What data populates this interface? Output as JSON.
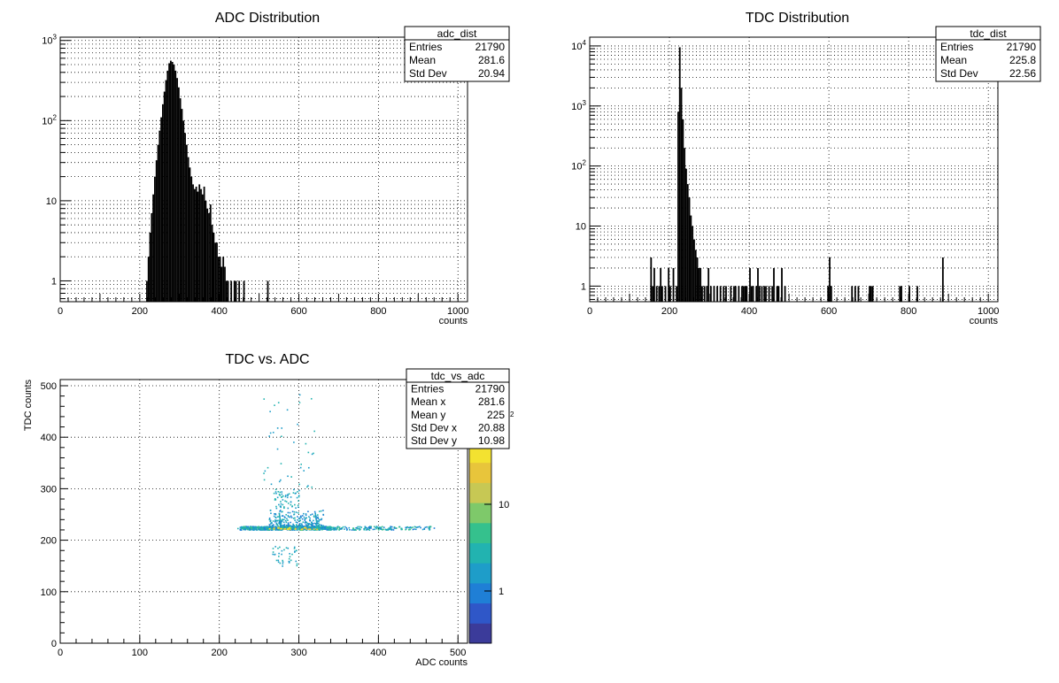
{
  "chart_data": [
    {
      "type": "bar",
      "id": "adc",
      "title": "ADC Distribution",
      "xlabel": "counts",
      "ylabel": "",
      "xlim": [
        0,
        1024
      ],
      "ylim": [
        0.55,
        1100
      ],
      "xticks": [
        "0",
        "200",
        "400",
        "600",
        "800",
        "1000"
      ],
      "yticks": [
        "1",
        "10",
        "10^2",
        "10^3"
      ],
      "y_log": true,
      "grid": true,
      "stats": {
        "name": "adc_dist",
        "rows": [
          [
            "Entries",
            "21790"
          ],
          [
            "Mean",
            "281.6"
          ],
          [
            "Std Dev",
            "20.94"
          ]
        ]
      },
      "bins": [
        [
          216,
          1
        ],
        [
          220,
          2
        ],
        [
          224,
          4
        ],
        [
          228,
          7
        ],
        [
          232,
          12
        ],
        [
          236,
          20
        ],
        [
          240,
          32
        ],
        [
          244,
          50
        ],
        [
          248,
          75
        ],
        [
          252,
          110
        ],
        [
          256,
          160
        ],
        [
          260,
          230
        ],
        [
          264,
          320
        ],
        [
          268,
          420
        ],
        [
          272,
          520
        ],
        [
          276,
          560
        ],
        [
          280,
          540
        ],
        [
          284,
          500
        ],
        [
          288,
          420
        ],
        [
          292,
          340
        ],
        [
          296,
          260
        ],
        [
          300,
          190
        ],
        [
          304,
          140
        ],
        [
          308,
          100
        ],
        [
          312,
          70
        ],
        [
          316,
          50
        ],
        [
          320,
          35
        ],
        [
          324,
          26
        ],
        [
          328,
          20
        ],
        [
          332,
          16
        ],
        [
          336,
          14
        ],
        [
          340,
          15
        ],
        [
          344,
          13
        ],
        [
          348,
          16
        ],
        [
          352,
          14
        ],
        [
          356,
          12
        ],
        [
          360,
          15
        ],
        [
          364,
          10
        ],
        [
          368,
          8
        ],
        [
          372,
          7
        ],
        [
          376,
          9
        ],
        [
          380,
          5
        ],
        [
          384,
          4
        ],
        [
          388,
          3
        ],
        [
          392,
          3
        ],
        [
          396,
          2
        ],
        [
          400,
          2
        ],
        [
          404,
          1.5
        ],
        [
          408,
          2
        ],
        [
          412,
          1.5
        ],
        [
          416,
          1
        ],
        [
          420,
          1
        ],
        [
          428,
          1
        ],
        [
          436,
          1
        ],
        [
          440,
          1
        ],
        [
          448,
          1
        ],
        [
          460,
          1
        ],
        [
          520,
          1
        ]
      ]
    },
    {
      "type": "bar",
      "id": "tdc",
      "title": "TDC Distribution",
      "xlabel": "counts",
      "ylabel": "",
      "xlim": [
        0,
        1024
      ],
      "ylim": [
        0.55,
        14000
      ],
      "xticks": [
        "0",
        "200",
        "400",
        "600",
        "800",
        "1000"
      ],
      "yticks": [
        "1",
        "10",
        "10^2",
        "10^3",
        "10^4"
      ],
      "y_log": true,
      "grid": true,
      "stats": {
        "name": "tdc_dist",
        "rows": [
          [
            "Entries",
            "21790"
          ],
          [
            "Mean",
            "225.8"
          ],
          [
            "Std Dev",
            "22.56"
          ]
        ]
      },
      "bins": [
        [
          152,
          3
        ],
        [
          156,
          1
        ],
        [
          160,
          2
        ],
        [
          166,
          1
        ],
        [
          172,
          1
        ],
        [
          176,
          2
        ],
        [
          180,
          1
        ],
        [
          188,
          1
        ],
        [
          196,
          2
        ],
        [
          200,
          1
        ],
        [
          208,
          2
        ],
        [
          216,
          1
        ],
        [
          220,
          800
        ],
        [
          224,
          9500
        ],
        [
          228,
          2000
        ],
        [
          232,
          600
        ],
        [
          236,
          200
        ],
        [
          240,
          90
        ],
        [
          244,
          50
        ],
        [
          248,
          30
        ],
        [
          252,
          15
        ],
        [
          256,
          10
        ],
        [
          260,
          6
        ],
        [
          264,
          4
        ],
        [
          268,
          3
        ],
        [
          272,
          2
        ],
        [
          276,
          2
        ],
        [
          280,
          1
        ],
        [
          286,
          1
        ],
        [
          292,
          1
        ],
        [
          296,
          2
        ],
        [
          302,
          1
        ],
        [
          310,
          1
        ],
        [
          318,
          1
        ],
        [
          326,
          1
        ],
        [
          334,
          1
        ],
        [
          340,
          1
        ],
        [
          352,
          1
        ],
        [
          360,
          1
        ],
        [
          364,
          1
        ],
        [
          372,
          1
        ],
        [
          380,
          1
        ],
        [
          384,
          1
        ],
        [
          388,
          1
        ],
        [
          392,
          1
        ],
        [
          400,
          2
        ],
        [
          404,
          1
        ],
        [
          408,
          1
        ],
        [
          416,
          1
        ],
        [
          420,
          2
        ],
        [
          424,
          1
        ],
        [
          430,
          1
        ],
        [
          436,
          1
        ],
        [
          440,
          1
        ],
        [
          448,
          1
        ],
        [
          456,
          1
        ],
        [
          460,
          2
        ],
        [
          468,
          1
        ],
        [
          472,
          1
        ],
        [
          480,
          2
        ],
        [
          488,
          1
        ],
        [
          596,
          1
        ],
        [
          600,
          3
        ],
        [
          604,
          1
        ],
        [
          656,
          1
        ],
        [
          664,
          1
        ],
        [
          672,
          1
        ],
        [
          700,
          1
        ],
        [
          704,
          1
        ],
        [
          708,
          1
        ],
        [
          776,
          1
        ],
        [
          780,
          1
        ],
        [
          800,
          1
        ],
        [
          820,
          1
        ],
        [
          884,
          3
        ]
      ]
    },
    {
      "type": "heatmap",
      "id": "tdc_vs_adc",
      "title": "TDC vs. ADC",
      "xlabel": "ADC counts",
      "ylabel": "TDC counts",
      "xlim": [
        0,
        512
      ],
      "ylim": [
        0,
        512
      ],
      "xticks": [
        "0",
        "100",
        "200",
        "300",
        "400",
        "500"
      ],
      "yticks": [
        "0",
        "100",
        "200",
        "300",
        "400",
        "500"
      ],
      "grid": true,
      "stats": {
        "name": "tdc_vs_adc",
        "rows": [
          [
            "Entries",
            "21790"
          ],
          [
            "Mean x",
            "281.6"
          ],
          [
            "Mean y",
            "225"
          ],
          [
            "Std Dev x",
            "20.88"
          ],
          [
            "Std Dev y",
            "10.98"
          ]
        ]
      },
      "colorbar": {
        "ticks": [
          "1",
          "10"
        ],
        "top_label": "2",
        "palette": [
          "#3b3b9a",
          "#2f57c8",
          "#1f7fd6",
          "#1e9dc9",
          "#22b3b0",
          "#35c18d",
          "#7ec96a",
          "#c7c854",
          "#e8c53b",
          "#f3e230"
        ]
      },
      "clusters": [
        {
          "x0": 222,
          "x1": 470,
          "y0": 221,
          "y1": 228,
          "density": "high"
        },
        {
          "x0": 262,
          "x1": 330,
          "y0": 228,
          "y1": 260,
          "density": "mid"
        },
        {
          "x0": 268,
          "x1": 300,
          "y0": 262,
          "y1": 300,
          "density": "low"
        },
        {
          "x0": 255,
          "x1": 320,
          "y0": 300,
          "y1": 490,
          "density": "sparse"
        },
        {
          "x0": 265,
          "x1": 300,
          "y0": 150,
          "y1": 190,
          "density": "sparse"
        }
      ]
    }
  ]
}
